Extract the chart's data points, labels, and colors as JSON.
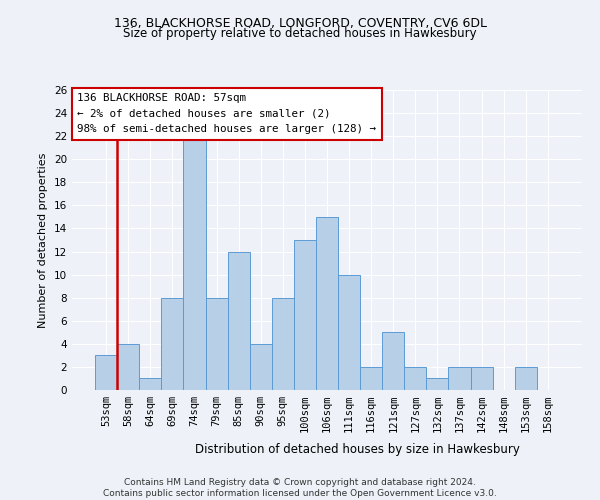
{
  "title": "136, BLACKHORSE ROAD, LONGFORD, COVENTRY, CV6 6DL",
  "subtitle": "Size of property relative to detached houses in Hawkesbury",
  "xlabel": "Distribution of detached houses by size in Hawkesbury",
  "ylabel": "Number of detached properties",
  "categories": [
    "53sqm",
    "58sqm",
    "64sqm",
    "69sqm",
    "74sqm",
    "79sqm",
    "85sqm",
    "90sqm",
    "95sqm",
    "100sqm",
    "106sqm",
    "111sqm",
    "116sqm",
    "121sqm",
    "127sqm",
    "132sqm",
    "137sqm",
    "142sqm",
    "148sqm",
    "153sqm",
    "158sqm"
  ],
  "values": [
    3,
    4,
    1,
    8,
    22,
    8,
    12,
    4,
    8,
    13,
    15,
    10,
    2,
    5,
    2,
    1,
    2,
    2,
    0,
    2,
    0
  ],
  "bar_color": "#b8cfe8",
  "bar_edge_color": "#5b9bd5",
  "ylim": [
    0,
    26
  ],
  "yticks": [
    0,
    2,
    4,
    6,
    8,
    10,
    12,
    14,
    16,
    18,
    20,
    22,
    24,
    26
  ],
  "annotation_text": "136 BLACKHORSE ROAD: 57sqm\n← 2% of detached houses are smaller (2)\n98% of semi-detached houses are larger (128) →",
  "footer": "Contains HM Land Registry data © Crown copyright and database right 2024.\nContains public sector information licensed under the Open Government Licence v3.0.",
  "bg_color": "#eef2f8",
  "grid_color": "#ffffff",
  "annotation_box_color": "#ffffff",
  "annotation_box_edge": "#cc0000",
  "red_line_x": 0.5,
  "title_fontsize": 9,
  "subtitle_fontsize": 8.5,
  "ylabel_fontsize": 8,
  "xlabel_fontsize": 8.5,
  "tick_fontsize": 7.5,
  "footer_fontsize": 6.5
}
